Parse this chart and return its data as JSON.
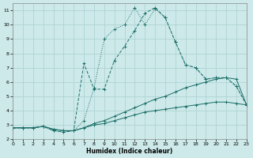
{
  "xlabel": "Humidex (Indice chaleur)",
  "bg_color": "#cde9e9",
  "grid_color": "#aad0d0",
  "line_color": "#1a6e68",
  "xlim": [
    0,
    23
  ],
  "ylim": [
    2,
    11.5
  ],
  "xticks": [
    0,
    1,
    2,
    3,
    4,
    5,
    6,
    7,
    8,
    9,
    10,
    11,
    12,
    13,
    14,
    15,
    16,
    17,
    18,
    19,
    20,
    21,
    22,
    23
  ],
  "yticks": [
    2,
    3,
    4,
    5,
    6,
    7,
    8,
    9,
    10,
    11
  ],
  "curve1_x": [
    0,
    1,
    2,
    3,
    4,
    5,
    6,
    7,
    8,
    9,
    10,
    11,
    12,
    13,
    14,
    15,
    16,
    17,
    18,
    19,
    20,
    21,
    22,
    23
  ],
  "curve1_y": [
    2.8,
    2.8,
    2.8,
    2.9,
    2.6,
    2.5,
    2.6,
    3.3,
    5.6,
    9.0,
    9.7,
    10.0,
    11.2,
    10.0,
    11.1,
    10.5,
    8.8,
    7.2,
    7.0,
    6.2,
    6.3,
    6.3,
    5.7,
    4.4
  ],
  "curve2_x": [
    0,
    1,
    2,
    3,
    4,
    5,
    6,
    7,
    8,
    9,
    10,
    11,
    12,
    13,
    14,
    15,
    16,
    17,
    18,
    19,
    20,
    21,
    22,
    23
  ],
  "curve2_y": [
    2.8,
    2.8,
    2.8,
    2.9,
    2.6,
    2.5,
    2.6,
    7.3,
    5.5,
    5.5,
    7.5,
    8.5,
    9.6,
    10.8,
    11.2,
    10.5,
    8.8,
    7.2,
    7.0,
    6.2,
    6.3,
    6.3,
    5.7,
    4.4
  ],
  "curve3_x": [
    0,
    1,
    2,
    3,
    4,
    5,
    6,
    7,
    8,
    9,
    10,
    11,
    12,
    13,
    14,
    15,
    16,
    17,
    18,
    19,
    20,
    21,
    22,
    23
  ],
  "curve3_y": [
    2.8,
    2.8,
    2.8,
    2.9,
    2.7,
    2.6,
    2.6,
    2.8,
    3.1,
    3.3,
    3.6,
    3.9,
    4.2,
    4.5,
    4.8,
    5.0,
    5.3,
    5.6,
    5.8,
    6.0,
    6.2,
    6.3,
    6.2,
    4.4
  ],
  "curve4_x": [
    0,
    1,
    2,
    3,
    4,
    5,
    6,
    7,
    8,
    9,
    10,
    11,
    12,
    13,
    14,
    15,
    16,
    17,
    18,
    19,
    20,
    21,
    22,
    23
  ],
  "curve4_y": [
    2.8,
    2.8,
    2.8,
    2.9,
    2.7,
    2.6,
    2.6,
    2.8,
    3.0,
    3.1,
    3.3,
    3.5,
    3.7,
    3.9,
    4.0,
    4.1,
    4.2,
    4.3,
    4.4,
    4.5,
    4.6,
    4.6,
    4.5,
    4.4
  ]
}
